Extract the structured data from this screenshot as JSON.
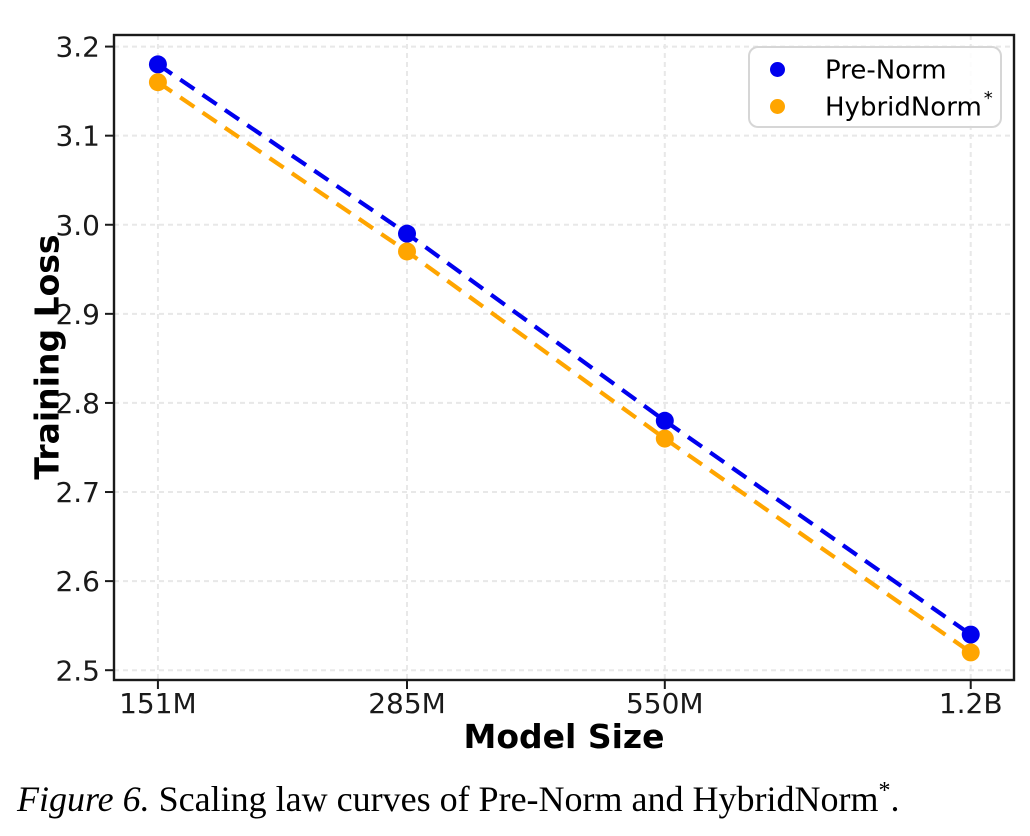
{
  "figure_caption": {
    "prefix": "Figure 6.",
    "body": " Scaling law curves of Pre-Norm and HybridNorm",
    "sup": "*",
    "end": "."
  },
  "chart_data": {
    "type": "line",
    "title": "",
    "xlabel": "Model Size",
    "ylabel": "Training Loss",
    "x_scale": "log",
    "categories": [
      "151M",
      "285M",
      "550M",
      "1.2B"
    ],
    "x_values_millions": [
      151,
      285,
      550,
      1200
    ],
    "xlim_millions": [
      135,
      1340
    ],
    "ylim": [
      2.489,
      3.213
    ],
    "y_ticks": [
      "2.5",
      "2.6",
      "2.7",
      "2.8",
      "2.9",
      "3.0",
      "3.1",
      "3.2"
    ],
    "grid": true,
    "grid_color": "#e8e8e8",
    "line_style": "dashed",
    "marker": "circle",
    "legend_position": "upper right",
    "axis_color": "#1a1a1a",
    "series": [
      {
        "name": "Pre-Norm",
        "name_sup": "",
        "color": "#0000ee",
        "values": [
          3.18,
          2.99,
          2.78,
          2.54
        ]
      },
      {
        "name": "HybridNorm",
        "name_sup": "*",
        "color": "#ffa500",
        "values": [
          3.16,
          2.97,
          2.76,
          2.52
        ]
      }
    ]
  }
}
